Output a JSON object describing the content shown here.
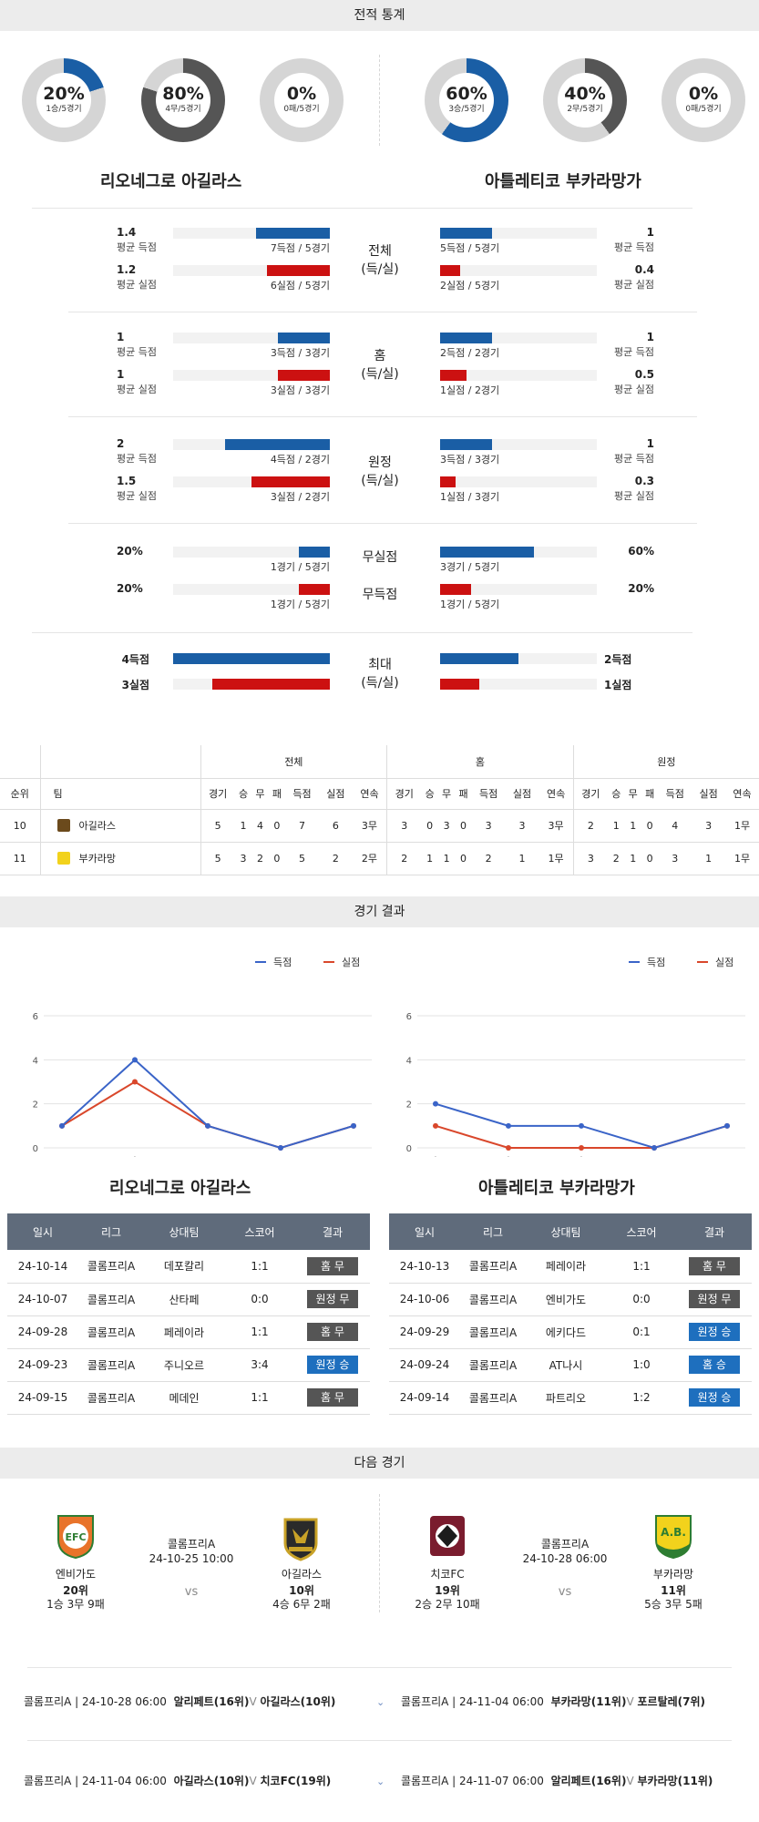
{
  "record_stats": {
    "section_title": "전적 통계",
    "home": {
      "name": "리오네그로 아길라스",
      "donuts": [
        {
          "pct": "20%",
          "sub": "1승/5경기",
          "value": 0.2,
          "color": "#1a5ea5"
        },
        {
          "pct": "80%",
          "sub": "4무/5경기",
          "value": 0.8,
          "color": "#555555"
        },
        {
          "pct": "0%",
          "sub": "0패/5경기",
          "value": 0.0,
          "color": "#cc1111"
        }
      ]
    },
    "away": {
      "name": "아틀레티코 부카라망가",
      "donuts": [
        {
          "pct": "60%",
          "sub": "3승/5경기",
          "value": 0.6,
          "color": "#1a5ea5"
        },
        {
          "pct": "40%",
          "sub": "2무/5경기",
          "value": 0.4,
          "color": "#555555"
        },
        {
          "pct": "0%",
          "sub": "0패/5경기",
          "value": 0.0,
          "color": "#cc1111"
        }
      ]
    },
    "groups": [
      {
        "label1": "전체",
        "label2": "(득/실)",
        "home": [
          {
            "val": "1.4",
            "lab": "평균 득점",
            "cap": "7득점 / 5경기",
            "ratio": 0.47
          },
          {
            "val": "1.2",
            "lab": "평균 실점",
            "cap": "6실점 / 5경기",
            "ratio": 0.4
          }
        ],
        "away": [
          {
            "val": "1",
            "lab": "평균 득점",
            "cap": "5득점 / 5경기",
            "ratio": 0.33
          },
          {
            "val": "0.4",
            "lab": "평균 실점",
            "cap": "2실점 / 5경기",
            "ratio": 0.13
          }
        ]
      },
      {
        "label1": "홈",
        "label2": "(득/실)",
        "home": [
          {
            "val": "1",
            "lab": "평균 득점",
            "cap": "3득점 / 3경기",
            "ratio": 0.33
          },
          {
            "val": "1",
            "lab": "평균 실점",
            "cap": "3실점 / 3경기",
            "ratio": 0.33
          }
        ],
        "away": [
          {
            "val": "1",
            "lab": "평균 득점",
            "cap": "2득점 / 2경기",
            "ratio": 0.33
          },
          {
            "val": "0.5",
            "lab": "평균 실점",
            "cap": "1실점 / 2경기",
            "ratio": 0.17
          }
        ]
      },
      {
        "label1": "원정",
        "label2": "(득/실)",
        "home": [
          {
            "val": "2",
            "lab": "평균 득점",
            "cap": "4득점 / 2경기",
            "ratio": 0.67
          },
          {
            "val": "1.5",
            "lab": "평균 실점",
            "cap": "3실점 / 2경기",
            "ratio": 0.5
          }
        ],
        "away": [
          {
            "val": "1",
            "lab": "평균 득점",
            "cap": "3득점 / 3경기",
            "ratio": 0.33
          },
          {
            "val": "0.3",
            "lab": "평균 실점",
            "cap": "1실점 / 3경기",
            "ratio": 0.1
          }
        ]
      }
    ],
    "clean_sheet": {
      "label": "무실점",
      "home": {
        "val": "20%",
        "cap": "1경기 / 5경기",
        "ratio": 0.2
      },
      "away": {
        "val": "60%",
        "cap": "3경기 / 5경기",
        "ratio": 0.6
      }
    },
    "no_score": {
      "label": "무득점",
      "home": {
        "val": "20%",
        "cap": "1경기 / 5경기",
        "ratio": 0.2
      },
      "away": {
        "val": "20%",
        "cap": "1경기 / 5경기",
        "ratio": 0.2
      }
    },
    "max": {
      "label1": "최대",
      "label2": "(득/실)",
      "home": [
        {
          "val": "4득점",
          "ratio": 1.0
        },
        {
          "val": "3실점",
          "ratio": 0.75
        }
      ],
      "away": [
        {
          "val": "2득점",
          "ratio": 0.5
        },
        {
          "val": "1실점",
          "ratio": 0.25
        }
      ]
    }
  },
  "standings": {
    "groups": [
      "전체",
      "홈",
      "원정"
    ],
    "col_rank": "순위",
    "col_team": "팀",
    "sub_cols": [
      "경기",
      "승",
      "무",
      "패",
      "득점",
      "실점",
      "연속"
    ],
    "rows": [
      {
        "rank": "10",
        "team": "아길라스",
        "all": [
          "5",
          "1",
          "4",
          "0",
          "7",
          "6",
          "3무"
        ],
        "home": [
          "3",
          "0",
          "3",
          "0",
          "3",
          "3",
          "3무"
        ],
        "away": [
          "2",
          "1",
          "1",
          "0",
          "4",
          "3",
          "1무"
        ]
      },
      {
        "rank": "11",
        "team": "부카라망",
        "all": [
          "5",
          "3",
          "2",
          "0",
          "5",
          "2",
          "2무"
        ],
        "home": [
          "2",
          "1",
          "1",
          "0",
          "2",
          "1",
          "1무"
        ],
        "away": [
          "3",
          "2",
          "1",
          "0",
          "3",
          "1",
          "1무"
        ]
      }
    ]
  },
  "match_results": {
    "section_title": "경기 결과",
    "legend_scored": "득점",
    "legend_conceded": "실점",
    "colors": {
      "scored": "#3a64c8",
      "conceded": "#d9472b"
    },
    "columns": [
      "일시",
      "리그",
      "상대팀",
      "스코어",
      "결과"
    ],
    "home": {
      "name": "리오네그로 아길라스",
      "rows": [
        {
          "date": "24-10-14",
          "league": "콜롬프리A",
          "opp": "데포칼리",
          "score": "1:1",
          "result": "홈 무",
          "style": "gray"
        },
        {
          "date": "24-10-07",
          "league": "콜롬프리A",
          "opp": "산타페",
          "score": "0:0",
          "result": "원정 무",
          "style": "gray"
        },
        {
          "date": "24-09-28",
          "league": "콜롬프리A",
          "opp": "페레이라",
          "score": "1:1",
          "result": "홈 무",
          "style": "gray"
        },
        {
          "date": "24-09-23",
          "league": "콜롬프리A",
          "opp": "주니오르",
          "score": "3:4",
          "result": "원정 승",
          "style": "blue"
        },
        {
          "date": "24-09-15",
          "league": "콜롬프리A",
          "opp": "메데인",
          "score": "1:1",
          "result": "홈 무",
          "style": "gray"
        }
      ]
    },
    "away": {
      "name": "아틀레티코 부카라망가",
      "rows": [
        {
          "date": "24-10-13",
          "league": "콜롬프리A",
          "opp": "페레이라",
          "score": "1:1",
          "result": "홈 무",
          "style": "gray"
        },
        {
          "date": "24-10-06",
          "league": "콜롬프리A",
          "opp": "엔비가도",
          "score": "0:0",
          "result": "원정 무",
          "style": "gray"
        },
        {
          "date": "24-09-29",
          "league": "콜롬프리A",
          "opp": "에키다드",
          "score": "0:1",
          "result": "원정 승",
          "style": "blue"
        },
        {
          "date": "24-09-24",
          "league": "콜롬프리A",
          "opp": "AT나시",
          "score": "1:0",
          "result": "홈 승",
          "style": "blue"
        },
        {
          "date": "24-09-14",
          "league": "콜롬프리A",
          "opp": "파트리오",
          "score": "1:2",
          "result": "원정 승",
          "style": "blue"
        }
      ]
    }
  },
  "chart_data": [
    {
      "type": "line",
      "categories": [
        "무",
        "승",
        "무",
        "무",
        "무"
      ],
      "yticks": [
        "0",
        "2",
        "4",
        "6"
      ],
      "ylim": [
        0,
        6
      ],
      "series": [
        {
          "name": "득점",
          "values": [
            1,
            4,
            1,
            0,
            1
          ]
        },
        {
          "name": "실점",
          "values": [
            1,
            3,
            1,
            0,
            1
          ]
        }
      ]
    },
    {
      "type": "line",
      "categories": [
        "승",
        "승",
        "승",
        "무",
        "무"
      ],
      "yticks": [
        "0",
        "2",
        "4",
        "6"
      ],
      "ylim": [
        0,
        6
      ],
      "series": [
        {
          "name": "득점",
          "values": [
            2,
            1,
            1,
            0,
            1
          ]
        },
        {
          "name": "실점",
          "values": [
            1,
            0,
            0,
            0,
            1
          ]
        }
      ]
    }
  ],
  "next_games": {
    "section_title": "다음 경기",
    "vs": "vs",
    "left": {
      "league": "콜롬프리A",
      "datetime": "24-10-25 10:00",
      "t1": {
        "name": "엔비가도",
        "rank": "20위",
        "record": "1승 3무 9패",
        "logo": "EFC",
        "logo_color": "#e8732a"
      },
      "t2": {
        "name": "아길라스",
        "rank": "10위",
        "record": "4승 6무 2패",
        "logo": "AGUILAS",
        "logo_color": "#6b4a1c"
      }
    },
    "right": {
      "league": "콜롬프리A",
      "datetime": "24-10-28 06:00",
      "t1": {
        "name": "치코FC",
        "rank": "19위",
        "record": "2승 2무 10패",
        "logo": "CHICO",
        "logo_color": "#7a1c2e"
      },
      "t2": {
        "name": "부카라망",
        "rank": "11위",
        "record": "5승 3무 5패",
        "logo": "A.B.",
        "logo_color": "#f2d21c"
      }
    }
  },
  "upcoming": [
    {
      "meta": "콜롬프리A | 24-10-28 06:00",
      "team_a": "알리페트(16위)",
      "sep": "V",
      "team_b": "아길라스(10위)"
    },
    {
      "meta": "콜롬프리A | 24-11-04 06:00",
      "team_a": "부카라망(11위)",
      "sep": "V",
      "team_b": "포르탈레(7위)"
    },
    {
      "meta": "콜롬프리A | 24-11-04 06:00",
      "team_a": "아길라스(10위)",
      "sep": "V",
      "team_b": "치코FC(19위)"
    },
    {
      "meta": "콜롬프리A | 24-11-07 06:00",
      "team_a": "알리페트(16위)",
      "sep": "V",
      "team_b": "부카라망(11위)"
    }
  ]
}
